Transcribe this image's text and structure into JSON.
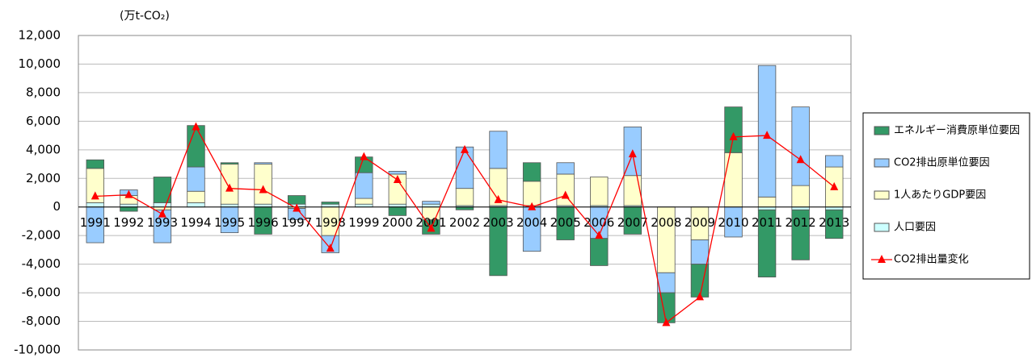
{
  "chart_data": {
    "type": "bar",
    "stacked": true,
    "y_label": "(万t-CO₂)",
    "categories": [
      "1991",
      "1992",
      "1993",
      "1994",
      "1995",
      "1996",
      "1997",
      "1998",
      "1999",
      "2000",
      "2001",
      "2002",
      "2003",
      "2004",
      "2005",
      "2006",
      "2007",
      "2008",
      "2009",
      "2010",
      "2011",
      "2012",
      "2013"
    ],
    "series": [
      {
        "name": "人口要因",
        "color": "#ccffff",
        "values": [
          300,
          200,
          300,
          300,
          200,
          200,
          200,
          200,
          200,
          200,
          200,
          100,
          100,
          100,
          100,
          100,
          100,
          0,
          0,
          0,
          -200,
          -200,
          -200
        ]
      },
      {
        "name": "1人あたりGDP要因",
        "color": "#ffffcc",
        "values": [
          2400,
          600,
          -200,
          800,
          2800,
          2800,
          -100,
          -2000,
          400,
          2100,
          -900,
          1200,
          2600,
          1700,
          2200,
          2000,
          2100,
          -4600,
          -2300,
          3800,
          700,
          1500,
          2800
        ]
      },
      {
        "name": "CO2排出原単位要因",
        "color": "#99ccff",
        "values": [
          -2500,
          400,
          -2300,
          1700,
          -1800,
          100,
          -800,
          -1200,
          1800,
          200,
          200,
          2900,
          2600,
          -3100,
          800,
          -2200,
          3400,
          -1400,
          -1700,
          -2100,
          9200,
          5500,
          800
        ]
      },
      {
        "name": "エネルギー消費原単位要因",
        "color": "#339966",
        "values": [
          600,
          -300,
          1800,
          2900,
          100,
          -1900,
          600,
          150,
          1100,
          -600,
          -1000,
          -200,
          -4800,
          1300,
          -2300,
          -1900,
          -1900,
          -2100,
          -2300,
          3200,
          -4700,
          -3500,
          -2000
        ]
      },
      {
        "name": "CO2排出量変化",
        "color": "#ff0000",
        "type": "line",
        "values": [
          750,
          850,
          -500,
          5600,
          1300,
          1200,
          -100,
          -2900,
          3500,
          1900,
          -1500,
          4000,
          500,
          0,
          800,
          -2000,
          3700,
          -8100,
          -6300,
          4900,
          5000,
          3300,
          1400
        ]
      }
    ],
    "ylim": [
      -10000,
      12000
    ],
    "yticks": [
      {
        "value": -10000,
        "label": "-10,000"
      },
      {
        "value": -8000,
        "label": "-8,000"
      },
      {
        "value": -6000,
        "label": "-6,000"
      },
      {
        "value": -4000,
        "label": "-4,000"
      },
      {
        "value": -2000,
        "label": "-2,000"
      },
      0,
      {
        "value": 2000,
        "label": "2,000"
      },
      {
        "value": 4000,
        "label": "4,000"
      },
      {
        "value": 6000,
        "label": "6,000"
      },
      {
        "value": 8000,
        "label": "8,000"
      },
      {
        "value": 10000,
        "label": "10,000"
      },
      {
        "value": 12000,
        "label": "12,000"
      }
    ],
    "grid": true
  }
}
